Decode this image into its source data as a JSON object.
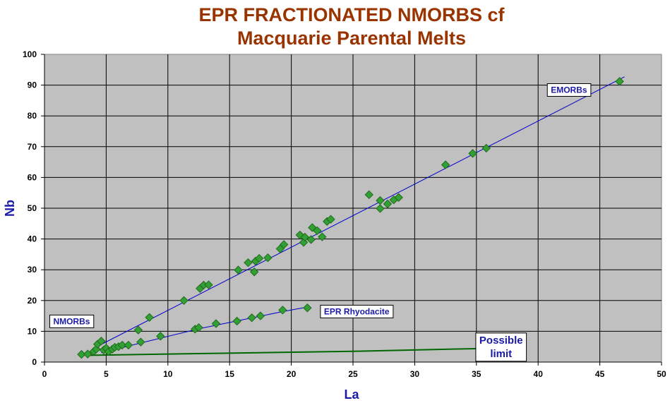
{
  "chart_data": {
    "type": "scatter",
    "title_line1": "EPR FRACTIONATED NMORBS cf",
    "title_line2": "Macquarie Parental Melts",
    "xlabel": "La",
    "ylabel": "Nb",
    "xlim": [
      0,
      50
    ],
    "ylim": [
      0,
      100
    ],
    "x_ticks": [
      "0",
      "5",
      "10",
      "15",
      "20",
      "25",
      "30",
      "35",
      "40",
      "45",
      "50"
    ],
    "y_ticks": [
      "0",
      "10",
      "20",
      "30",
      "40",
      "50",
      "60",
      "70",
      "80",
      "90",
      "100"
    ],
    "grid": true,
    "colors": {
      "plot_bg": "#c0c0c0",
      "point_fill": "#33a033",
      "point_stroke": "#1e6b1e",
      "trend_line": "#0000cc",
      "limit_line": "#006600",
      "title": "#993300",
      "axis_label": "#1a1aa6"
    },
    "points": [
      {
        "x": 3.0,
        "y": 2.5
      },
      {
        "x": 3.5,
        "y": 2.6
      },
      {
        "x": 4.0,
        "y": 3.5
      },
      {
        "x": 4.2,
        "y": 4.2
      },
      {
        "x": 4.3,
        "y": 5.8
      },
      {
        "x": 4.6,
        "y": 6.8
      },
      {
        "x": 4.8,
        "y": 3.9
      },
      {
        "x": 5.0,
        "y": 4.5
      },
      {
        "x": 5.2,
        "y": 3.4
      },
      {
        "x": 5.5,
        "y": 4.2
      },
      {
        "x": 5.7,
        "y": 4.8
      },
      {
        "x": 6.0,
        "y": 5.0
      },
      {
        "x": 6.3,
        "y": 5.5
      },
      {
        "x": 6.8,
        "y": 5.5
      },
      {
        "x": 7.6,
        "y": 10.4
      },
      {
        "x": 7.8,
        "y": 6.5
      },
      {
        "x": 8.5,
        "y": 14.5
      },
      {
        "x": 9.4,
        "y": 8.4
      },
      {
        "x": 11.3,
        "y": 20.0
      },
      {
        "x": 12.2,
        "y": 10.7
      },
      {
        "x": 12.5,
        "y": 11.2
      },
      {
        "x": 12.6,
        "y": 23.9
      },
      {
        "x": 12.9,
        "y": 25.0
      },
      {
        "x": 13.3,
        "y": 25.1
      },
      {
        "x": 13.9,
        "y": 12.5
      },
      {
        "x": 15.6,
        "y": 13.3
      },
      {
        "x": 15.7,
        "y": 29.9
      },
      {
        "x": 16.5,
        "y": 32.3
      },
      {
        "x": 16.8,
        "y": 14.4
      },
      {
        "x": 17.0,
        "y": 29.3
      },
      {
        "x": 17.1,
        "y": 32.8
      },
      {
        "x": 17.4,
        "y": 33.7
      },
      {
        "x": 17.5,
        "y": 15.0
      },
      {
        "x": 18.1,
        "y": 33.9
      },
      {
        "x": 19.1,
        "y": 36.8
      },
      {
        "x": 19.3,
        "y": 16.9
      },
      {
        "x": 19.4,
        "y": 38.2
      },
      {
        "x": 20.7,
        "y": 41.3
      },
      {
        "x": 21.0,
        "y": 38.9
      },
      {
        "x": 21.1,
        "y": 40.6
      },
      {
        "x": 21.3,
        "y": 17.6
      },
      {
        "x": 21.6,
        "y": 39.8
      },
      {
        "x": 21.7,
        "y": 43.7
      },
      {
        "x": 22.1,
        "y": 42.7
      },
      {
        "x": 22.5,
        "y": 40.7
      },
      {
        "x": 22.9,
        "y": 45.7
      },
      {
        "x": 23.2,
        "y": 46.4
      },
      {
        "x": 26.3,
        "y": 54.4
      },
      {
        "x": 27.2,
        "y": 52.5
      },
      {
        "x": 27.2,
        "y": 49.9
      },
      {
        "x": 27.8,
        "y": 51.4
      },
      {
        "x": 28.3,
        "y": 52.7
      },
      {
        "x": 28.7,
        "y": 53.5
      },
      {
        "x": 32.5,
        "y": 64.1
      },
      {
        "x": 34.7,
        "y": 67.8
      },
      {
        "x": 35.8,
        "y": 69.5
      },
      {
        "x": 46.6,
        "y": 91.2
      }
    ],
    "lines": [
      {
        "role": "emorb_trend",
        "x": [
          4.0,
          47.0
        ],
        "y": [
          4.5,
          92.7
        ]
      },
      {
        "role": "rhyodacite_trend",
        "x": [
          4.6,
          8.0,
          12.5,
          16.0,
          19.3,
          21.3
        ],
        "y": [
          3.0,
          6.4,
          10.8,
          13.7,
          16.4,
          17.9
        ]
      },
      {
        "role": "possible_limit",
        "x": [
          3.5,
          15.0,
          25.0,
          35.3
        ],
        "y": [
          2.2,
          2.9,
          3.5,
          4.4
        ]
      }
    ],
    "annotations": [
      {
        "text": "EMORBs",
        "x": 42.5,
        "y": 87.5,
        "size": "small"
      },
      {
        "text": "EPR Rhyodacite",
        "x": 25.3,
        "y": 15.5,
        "size": "small"
      },
      {
        "text": "NMORBs",
        "x": 2.2,
        "y": 12.3,
        "size": "small"
      },
      {
        "text": "Possible",
        "line2": "limit",
        "x": 37.0,
        "y": 6.0,
        "size": "big"
      }
    ]
  }
}
